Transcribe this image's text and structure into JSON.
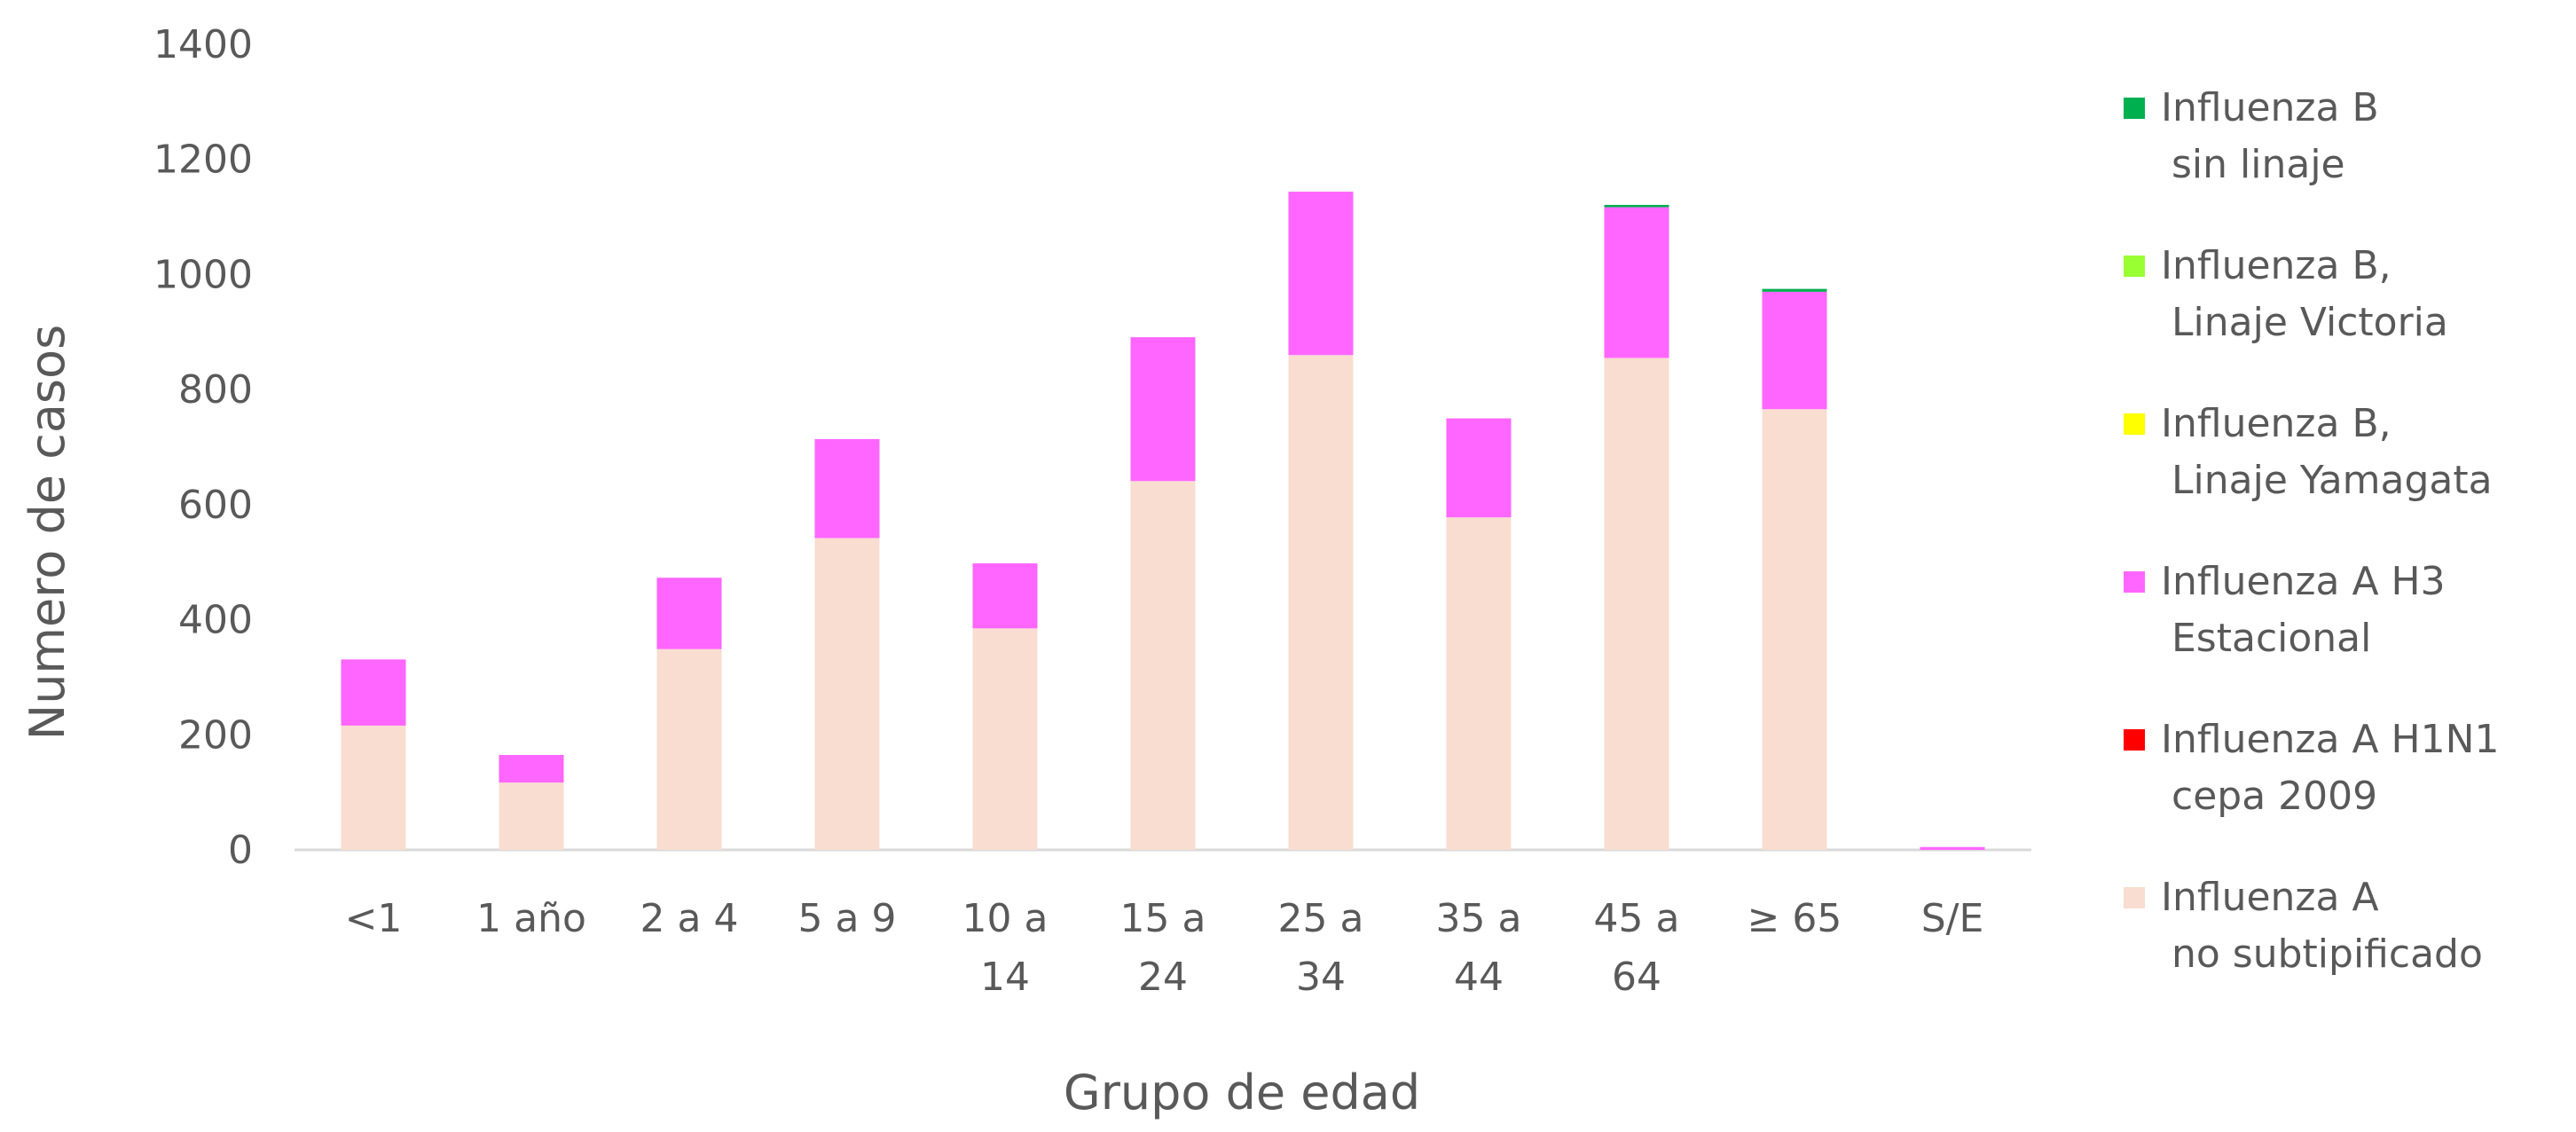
{
  "chart_data": {
    "type": "bar",
    "stacked": true,
    "title": "",
    "xlabel": "Grupo de edad",
    "ylabel": "Numero de casos",
    "ylim": [
      0,
      1400
    ],
    "yticks": [
      "0",
      "200",
      "400",
      "600",
      "800",
      "1000",
      "1200",
      "1400"
    ],
    "grid": false,
    "legend_position": "right",
    "categories": [
      [
        "<1"
      ],
      [
        "1 año"
      ],
      [
        "2 a 4"
      ],
      [
        "5 a 9"
      ],
      [
        "10 a",
        "14"
      ],
      [
        "15 a",
        "24"
      ],
      [
        "25 a",
        "34"
      ],
      [
        "35 a",
        "44"
      ],
      [
        "45 a",
        "64"
      ],
      [
        "≥ 65"
      ],
      [
        "S/E"
      ]
    ],
    "series": [
      {
        "name": [
          "Influenza A",
          "no subtipificado"
        ],
        "color": "#F8DDD0",
        "values": [
          216,
          117,
          349,
          542,
          385,
          641,
          860,
          578,
          855,
          766,
          0
        ]
      },
      {
        "name": [
          "Influenza A H1N1",
          "cepa 2009"
        ],
        "color": "#FF0000",
        "values": [
          0,
          0,
          0,
          0,
          0,
          0,
          0,
          0,
          0,
          0,
          0
        ]
      },
      {
        "name": [
          "Influenza A H3",
          "Estacional"
        ],
        "color": "#FF66FF",
        "values": [
          115,
          48,
          124,
          172,
          113,
          250,
          284,
          172,
          262,
          204,
          5
        ]
      },
      {
        "name": [
          "Influenza B,",
          "Linaje Yamagata"
        ],
        "color": "#FFFF00",
        "values": [
          0,
          0,
          0,
          0,
          0,
          0,
          0,
          0,
          0,
          0,
          0
        ]
      },
      {
        "name": [
          "Influenza B,",
          "Linaje Victoria"
        ],
        "color": "#99FF33",
        "values": [
          0,
          0,
          0,
          0,
          0,
          0,
          0,
          0,
          0,
          0,
          0
        ]
      },
      {
        "name": [
          "Influenza B",
          "sin linaje"
        ],
        "color": "#00B050",
        "values": [
          0,
          0,
          0,
          0,
          0,
          0,
          0,
          0,
          4,
          5,
          0
        ]
      }
    ]
  }
}
